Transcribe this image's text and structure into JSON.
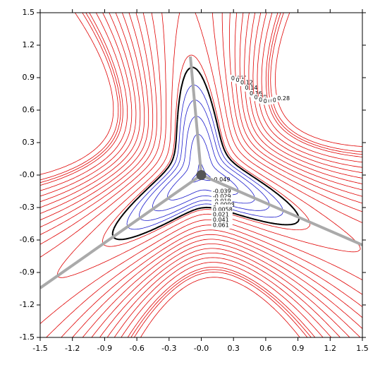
{
  "chart_data": {
    "type": "contour",
    "xlim": [
      -1.5,
      1.5
    ],
    "ylim": [
      -1.5,
      1.5
    ],
    "xticks": [
      -1.5,
      -1.2,
      -0.9,
      -0.6,
      -0.3,
      {
        "value": 0,
        "label": "-0.0"
      },
      0.3,
      0.6,
      0.9,
      1.2,
      1.5
    ],
    "yticks": [
      -1.5,
      -1.2,
      -0.9,
      -0.6,
      -0.3,
      {
        "value": 0,
        "label": "-0.0"
      },
      0.3,
      0.6,
      0.9,
      1.2,
      1.5
    ],
    "levels": [
      -0.049,
      -0.039,
      -0.029,
      -0.019,
      -0.0098,
      0,
      0.0058,
      0.021,
      0.041,
      0.061,
      0.081,
      0.1,
      0.12,
      0.14,
      0.16,
      0.18,
      0.2,
      0.22,
      0.24,
      0.25,
      0.26,
      0.28
    ],
    "negative_color": "#1a1acc",
    "zero_color": "#000000",
    "positive_color": "#e00000"
  }
}
